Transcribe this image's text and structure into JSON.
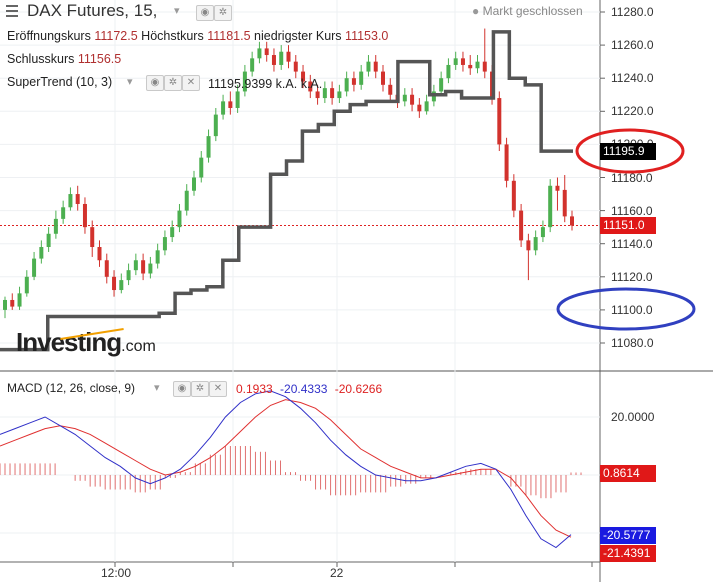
{
  "header": {
    "title": "DAX Futures, 15,",
    "market_status": "Markt geschlossen",
    "open_label": "Eröffnungskurs",
    "open_value": "11172.5",
    "high_label": "Höchstkurs",
    "high_value": "11181.5",
    "low_label": "niedrigster Kurs",
    "low_value": "11153.0",
    "close_label": "Schlusskurs",
    "close_value": "11156.5"
  },
  "indicators": {
    "supertrend_label": "SuperTrend (10, 3)",
    "supertrend_value": "11195.9399",
    "supertrend_extra_1": "k.A.",
    "supertrend_extra_2": "k.A.",
    "macd_label": "MACD (12, 26, close, 9)",
    "macd_hist": "0.1933",
    "macd_line": "-20.4333",
    "macd_signal": "-20.6266"
  },
  "watermark": {
    "brand": "Investing",
    "suffix": ".com"
  },
  "colors": {
    "up": "#4caf50",
    "down": "#d2322d",
    "supertrend": "#555555",
    "macd_line": "#3030c8",
    "signal_line": "#e03030",
    "annotation_red": "#e02020",
    "annotation_blue": "#3040c0"
  },
  "price_axis": {
    "ticks": [
      "11280.0",
      "11260.0",
      "11240.0",
      "11220.0",
      "11200.0",
      "11180.0",
      "11160.0",
      "11140.0",
      "11120.0",
      "11100.0",
      "11080.0"
    ]
  },
  "price_tags": {
    "supertrend": "11195.9",
    "last": "11151.0"
  },
  "macd_axis": {
    "ticks": [
      "20.0000"
    ],
    "tags": {
      "hist": "0.8614",
      "macd": "-20.5777",
      "signal": "-21.4391"
    }
  },
  "time_axis": {
    "ticks": [
      "12:00",
      "22"
    ]
  },
  "chart_data": {
    "type": "candlestick",
    "title": "DAX Futures, 15,",
    "ylim": [
      11070,
      11285
    ],
    "y_ticks": [
      11080,
      11100,
      11120,
      11140,
      11160,
      11180,
      11200,
      11220,
      11240,
      11260,
      11280
    ],
    "x_ticks": [
      "12:00",
      "22"
    ],
    "last_price": 11151.0,
    "candles": [
      [
        11100,
        11106,
        11095,
        11108
      ],
      [
        11106,
        11102,
        11100,
        11110
      ],
      [
        11102,
        11110,
        11100,
        11114
      ],
      [
        11110,
        11120,
        11108,
        11124
      ],
      [
        11120,
        11131,
        11118,
        11135
      ],
      [
        11131,
        11138,
        11128,
        11142
      ],
      [
        11138,
        11146,
        11135,
        11150
      ],
      [
        11146,
        11155,
        11143,
        11160
      ],
      [
        11155,
        11162,
        11152,
        11166
      ],
      [
        11162,
        11170,
        11160,
        11174
      ],
      [
        11170,
        11164,
        11160,
        11175
      ],
      [
        11164,
        11150,
        11146,
        11168
      ],
      [
        11150,
        11138,
        11132,
        11154
      ],
      [
        11138,
        11130,
        11126,
        11142
      ],
      [
        11130,
        11120,
        11116,
        11134
      ],
      [
        11120,
        11112,
        11108,
        11124
      ],
      [
        11112,
        11118,
        11110,
        11122
      ],
      [
        11118,
        11124,
        11115,
        11128
      ],
      [
        11124,
        11130,
        11121,
        11134
      ],
      [
        11130,
        11122,
        11118,
        11134
      ],
      [
        11122,
        11128,
        11119,
        11132
      ],
      [
        11128,
        11136,
        11125,
        11140
      ],
      [
        11136,
        11144,
        11133,
        11148
      ],
      [
        11144,
        11150,
        11141,
        11154
      ],
      [
        11150,
        11160,
        11147,
        11164
      ],
      [
        11160,
        11172,
        11157,
        11176
      ],
      [
        11172,
        11180,
        11169,
        11184
      ],
      [
        11180,
        11192,
        11177,
        11196
      ],
      [
        11192,
        11205,
        11189,
        11209
      ],
      [
        11205,
        11218,
        11202,
        11222
      ],
      [
        11218,
        11226,
        11215,
        11230
      ],
      [
        11226,
        11222,
        11218,
        11232
      ],
      [
        11222,
        11232,
        11219,
        11236
      ],
      [
        11232,
        11244,
        11229,
        11248
      ],
      [
        11244,
        11252,
        11241,
        11256
      ],
      [
        11252,
        11258,
        11249,
        11262
      ],
      [
        11258,
        11254,
        11250,
        11262
      ],
      [
        11254,
        11248,
        11244,
        11258
      ],
      [
        11248,
        11256,
        11245,
        11260
      ],
      [
        11256,
        11250,
        11246,
        11260
      ],
      [
        11250,
        11244,
        11240,
        11254
      ],
      [
        11244,
        11238,
        11234,
        11248
      ],
      [
        11238,
        11232,
        11228,
        11242
      ],
      [
        11232,
        11228,
        11224,
        11236
      ],
      [
        11228,
        11234,
        11225,
        11238
      ],
      [
        11234,
        11228,
        11224,
        11238
      ],
      [
        11228,
        11232,
        11225,
        11236
      ],
      [
        11232,
        11240,
        11229,
        11244
      ],
      [
        11240,
        11236,
        11232,
        11244
      ],
      [
        11236,
        11244,
        11233,
        11248
      ],
      [
        11244,
        11250,
        11241,
        11254
      ],
      [
        11250,
        11244,
        11240,
        11254
      ],
      [
        11244,
        11236,
        11232,
        11248
      ],
      [
        11236,
        11230,
        11226,
        11240
      ],
      [
        11230,
        11226,
        11222,
        11234
      ],
      [
        11226,
        11230,
        11223,
        11234
      ],
      [
        11230,
        11224,
        11220,
        11234
      ],
      [
        11224,
        11220,
        11216,
        11228
      ],
      [
        11220,
        11226,
        11218,
        11230
      ],
      [
        11226,
        11232,
        11223,
        11236
      ],
      [
        11232,
        11240,
        11229,
        11244
      ],
      [
        11240,
        11248,
        11237,
        11252
      ],
      [
        11248,
        11252,
        11245,
        11256
      ],
      [
        11252,
        11248,
        11244,
        11256
      ],
      [
        11248,
        11246,
        11242,
        11254
      ],
      [
        11246,
        11250,
        11243,
        11254
      ],
      [
        11250,
        11244,
        11240,
        11270
      ],
      [
        11244,
        11228,
        11224,
        11248
      ],
      [
        11228,
        11200,
        11196,
        11232
      ],
      [
        11200,
        11178,
        11174,
        11204
      ],
      [
        11178,
        11160,
        11156,
        11182
      ],
      [
        11160,
        11142,
        11138,
        11164
      ],
      [
        11142,
        11136,
        11118,
        11146
      ],
      [
        11136,
        11144,
        11133,
        11148
      ],
      [
        11144,
        11150,
        11141,
        11154
      ],
      [
        11150,
        11175,
        11147,
        11179
      ],
      [
        11175,
        11172,
        11160,
        11180
      ],
      [
        11172.5,
        11156.5,
        11153,
        11181.5
      ],
      [
        11156.5,
        11151,
        11148,
        11160
      ]
    ],
    "supertrend": [
      11076,
      11076,
      11076,
      11096,
      11096,
      11096,
      11096,
      11096,
      11096,
      11096,
      11098,
      11110,
      11112,
      11114,
      11130,
      11150,
      11150,
      11182,
      11190,
      11208,
      11212,
      11220,
      11224,
      11226,
      11226,
      11250,
      11250,
      11230,
      11232,
      11228,
      11228,
      11268,
      11240,
      11236,
      11195.9,
      11195.9,
      11195.9
    ],
    "macd": {
      "x_ticks": [
        "12:00",
        "22"
      ],
      "y_ticks": [
        20
      ],
      "ylim": [
        -26,
        32
      ],
      "macd_line": [
        14,
        16,
        18,
        20,
        17,
        14,
        10,
        6,
        3,
        -1,
        -3,
        -1,
        2,
        7,
        13,
        20,
        25,
        28,
        29,
        27,
        23,
        18,
        12,
        7,
        3,
        0,
        -1,
        -2,
        -2,
        -1,
        1,
        3,
        4,
        2,
        -5,
        -14,
        -22,
        -25,
        -20.58
      ],
      "signal_line": [
        10,
        12,
        14,
        16,
        17,
        16,
        14,
        11,
        8,
        5,
        2,
        0,
        1,
        3,
        6,
        10,
        15,
        20,
        24,
        26,
        25,
        23,
        19,
        14,
        9,
        6,
        3,
        1,
        -1,
        -1,
        0,
        1,
        2,
        2,
        -1,
        -7,
        -14,
        -19,
        -21.44
      ],
      "histogram": [
        4,
        4,
        4,
        4,
        0,
        -2,
        -4,
        -5,
        -5,
        -6,
        -5,
        -1,
        1,
        4,
        7,
        10,
        10,
        8,
        5,
        1,
        -2,
        -5,
        -7,
        -7,
        -6,
        -6,
        -4,
        -3,
        -1,
        0,
        1,
        2,
        2,
        0,
        -4,
        -7,
        -8,
        -6,
        0.86
      ]
    }
  }
}
